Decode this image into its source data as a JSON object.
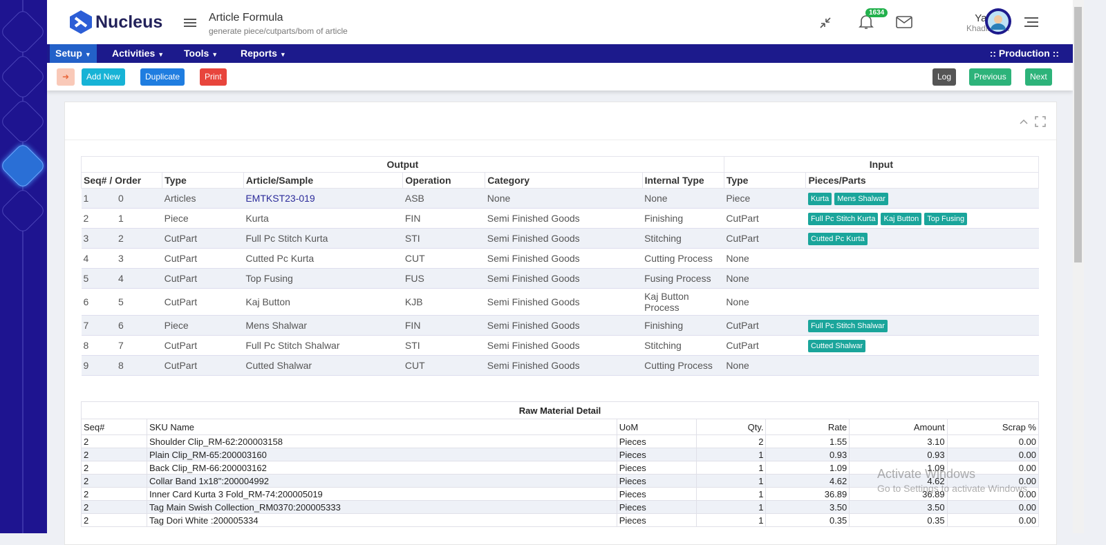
{
  "header": {
    "logo": "Nucleus",
    "title": "Article Formula",
    "subtitle": "generate piece/cutparts/bom of article",
    "notifications": "1634",
    "user_first": "Yaseen",
    "user_last": "Khadiawala"
  },
  "nav": {
    "items": [
      "Setup",
      "Activities",
      "Tools",
      "Reports"
    ],
    "context": ":: Production ::"
  },
  "toolbar": {
    "left": [
      "Add New",
      "Duplicate",
      "Print"
    ],
    "right": [
      "Log",
      "Previous",
      "Next"
    ]
  },
  "output_table": {
    "groups": [
      "Output",
      "Input"
    ],
    "headers": [
      "Seq# / Order",
      "Type",
      "Article/Sample",
      "Operation",
      "Category",
      "Internal Type",
      "Type",
      "Pieces/Parts"
    ],
    "rows": [
      {
        "seq": "1",
        "order": "0",
        "type": "Articles",
        "article": "EMTKST23-019",
        "operation": "ASB",
        "category": "None",
        "internal_type": "None",
        "input_type": "Piece",
        "parts": [
          "Kurta",
          "Mens Shalwar"
        ]
      },
      {
        "seq": "2",
        "order": "1",
        "type": "Piece",
        "article": "Kurta",
        "operation": "FIN",
        "category": "Semi Finished Goods",
        "internal_type": "Finishing",
        "input_type": "CutPart",
        "parts": [
          "Full Pc Stitch Kurta",
          "Kaj Button",
          "Top Fusing"
        ]
      },
      {
        "seq": "3",
        "order": "2",
        "type": "CutPart",
        "article": "Full Pc Stitch Kurta",
        "operation": "STI",
        "category": "Semi Finished Goods",
        "internal_type": "Stitching",
        "input_type": "CutPart",
        "parts": [
          "Cutted Pc Kurta"
        ]
      },
      {
        "seq": "4",
        "order": "3",
        "type": "CutPart",
        "article": "Cutted Pc Kurta",
        "operation": "CUT",
        "category": "Semi Finished Goods",
        "internal_type": "Cutting Process",
        "input_type": "None",
        "parts": []
      },
      {
        "seq": "5",
        "order": "4",
        "type": "CutPart",
        "article": "Top Fusing",
        "operation": "FUS",
        "category": "Semi Finished Goods",
        "internal_type": "Fusing Process",
        "input_type": "None",
        "parts": []
      },
      {
        "seq": "6",
        "order": "5",
        "type": "CutPart",
        "article": "Kaj Button",
        "operation": "KJB",
        "category": "Semi Finished Goods",
        "internal_type": "Kaj Button Process",
        "input_type": "None",
        "parts": []
      },
      {
        "seq": "7",
        "order": "6",
        "type": "Piece",
        "article": "Mens Shalwar",
        "operation": "FIN",
        "category": "Semi Finished Goods",
        "internal_type": "Finishing",
        "input_type": "CutPart",
        "parts": [
          "Full Pc Stitch Shalwar"
        ]
      },
      {
        "seq": "8",
        "order": "7",
        "type": "CutPart",
        "article": "Full Pc Stitch Shalwar",
        "operation": "STI",
        "category": "Semi Finished Goods",
        "internal_type": "Stitching",
        "input_type": "CutPart",
        "parts": [
          "Cutted Shalwar"
        ]
      },
      {
        "seq": "9",
        "order": "8",
        "type": "CutPart",
        "article": "Cutted Shalwar",
        "operation": "CUT",
        "category": "Semi Finished Goods",
        "internal_type": "Cutting Process",
        "input_type": "None",
        "parts": []
      }
    ]
  },
  "raw_material": {
    "title": "Raw Material Detail",
    "headers": [
      "Seq#",
      "SKU Name",
      "UoM",
      "Qty.",
      "Rate",
      "Amount",
      "Scrap %"
    ],
    "rows": [
      [
        "2",
        "Shoulder Clip_RM-62:200003158",
        "Pieces",
        "2",
        "1.55",
        "3.10",
        "0.00"
      ],
      [
        "2",
        "Plain Clip_RM-65:200003160",
        "Pieces",
        "1",
        "0.93",
        "0.93",
        "0.00"
      ],
      [
        "2",
        "Back Clip_RM-66:200003162",
        "Pieces",
        "1",
        "1.09",
        "1.09",
        "0.00"
      ],
      [
        "2",
        "Collar Band 1x18\":200004992",
        "Pieces",
        "1",
        "4.62",
        "4.62",
        "0.00"
      ],
      [
        "2",
        "Inner Card Kurta 3 Fold_RM-74:200005019",
        "Pieces",
        "1",
        "36.89",
        "36.89",
        "0.00"
      ],
      [
        "2",
        "Tag Main Swish Collection_RM0370:200005333",
        "Pieces",
        "1",
        "3.50",
        "3.50",
        "0.00"
      ],
      [
        "2",
        "Tag Dori White :200005334",
        "Pieces",
        "1",
        "0.35",
        "0.35",
        "0.00"
      ]
    ]
  },
  "watermark": {
    "line1": "Activate Windows",
    "line2": "Go to Settings to activate Windows."
  }
}
